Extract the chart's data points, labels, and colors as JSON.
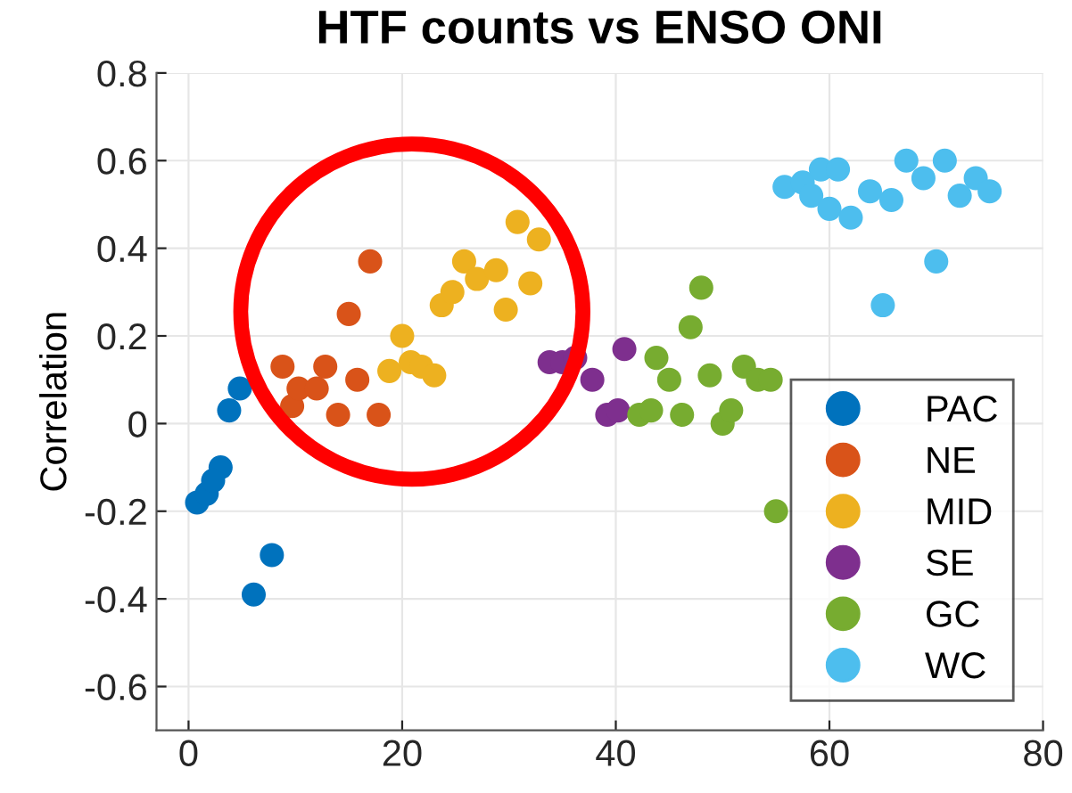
{
  "chart_data": {
    "type": "scatter",
    "title": "HTF counts vs ENSO ONI",
    "ylabel": "Correlation",
    "xlim": [
      -3,
      80
    ],
    "xticks": [
      0,
      20,
      40,
      60,
      80
    ],
    "ylim": [
      -0.7,
      0.8
    ],
    "yticks": [
      -0.6,
      -0.4,
      -0.2,
      0,
      0.2,
      0.4,
      0.6,
      0.8
    ],
    "grid": true,
    "legend": "bottom right",
    "marker": "circle",
    "series": [
      {
        "name": "PAC",
        "color": "#0072bd",
        "x": [
          0.8,
          1.7,
          3,
          3.8,
          4.8,
          7.8,
          6.1,
          2.3
        ],
        "values": [
          -0.18,
          -0.16,
          -0.1,
          0.03,
          0.08,
          -0.3,
          -0.39,
          -0.13
        ]
      },
      {
        "name": "NE",
        "color": "#d95319",
        "x": [
          8.8,
          9.7,
          10.3,
          12,
          12.8,
          14,
          15,
          15.8,
          17,
          17.8
        ],
        "values": [
          0.13,
          0.04,
          0.08,
          0.08,
          0.13,
          0.02,
          0.25,
          0.1,
          0.37,
          0.02
        ]
      },
      {
        "name": "MID",
        "color": "#edb120",
        "x": [
          18.8,
          20,
          20.8,
          21.8,
          23,
          23.7,
          24.7,
          25.8,
          27,
          28.8,
          29.7,
          30.8,
          32.8,
          32
        ],
        "values": [
          0.12,
          0.2,
          0.14,
          0.13,
          0.11,
          0.27,
          0.3,
          0.37,
          0.33,
          0.35,
          0.26,
          0.46,
          0.42,
          0.32
        ]
      },
      {
        "name": "SE",
        "color": "#7e2f8e",
        "x": [
          33.8,
          35,
          36.2,
          37.8,
          40.8,
          39.2,
          40.2
        ],
        "values": [
          0.14,
          0.14,
          0.15,
          0.1,
          0.17,
          0.02,
          0.03
        ]
      },
      {
        "name": "GC",
        "color": "#77ac30",
        "x": [
          42.2,
          43.3,
          43.8,
          45,
          46.2,
          47,
          48,
          48.8,
          50,
          50.8,
          52,
          53.3,
          54.5,
          55
        ],
        "values": [
          0.02,
          0.03,
          0.15,
          0.1,
          0.02,
          0.22,
          0.31,
          0.11,
          0.0,
          0.03,
          0.13,
          0.1,
          0.1,
          -0.2
        ]
      },
      {
        "name": "WC",
        "color": "#4dbeee",
        "x": [
          55.8,
          57.5,
          58.3,
          59.2,
          60.8,
          60,
          62,
          63.8,
          65.8,
          67.2,
          68.8,
          70.8,
          72.2,
          73.7,
          75,
          70,
          65
        ],
        "values": [
          0.54,
          0.55,
          0.52,
          0.58,
          0.58,
          0.49,
          0.47,
          0.53,
          0.51,
          0.6,
          0.56,
          0.6,
          0.52,
          0.56,
          0.53,
          0.37,
          0.27
        ]
      }
    ]
  }
}
